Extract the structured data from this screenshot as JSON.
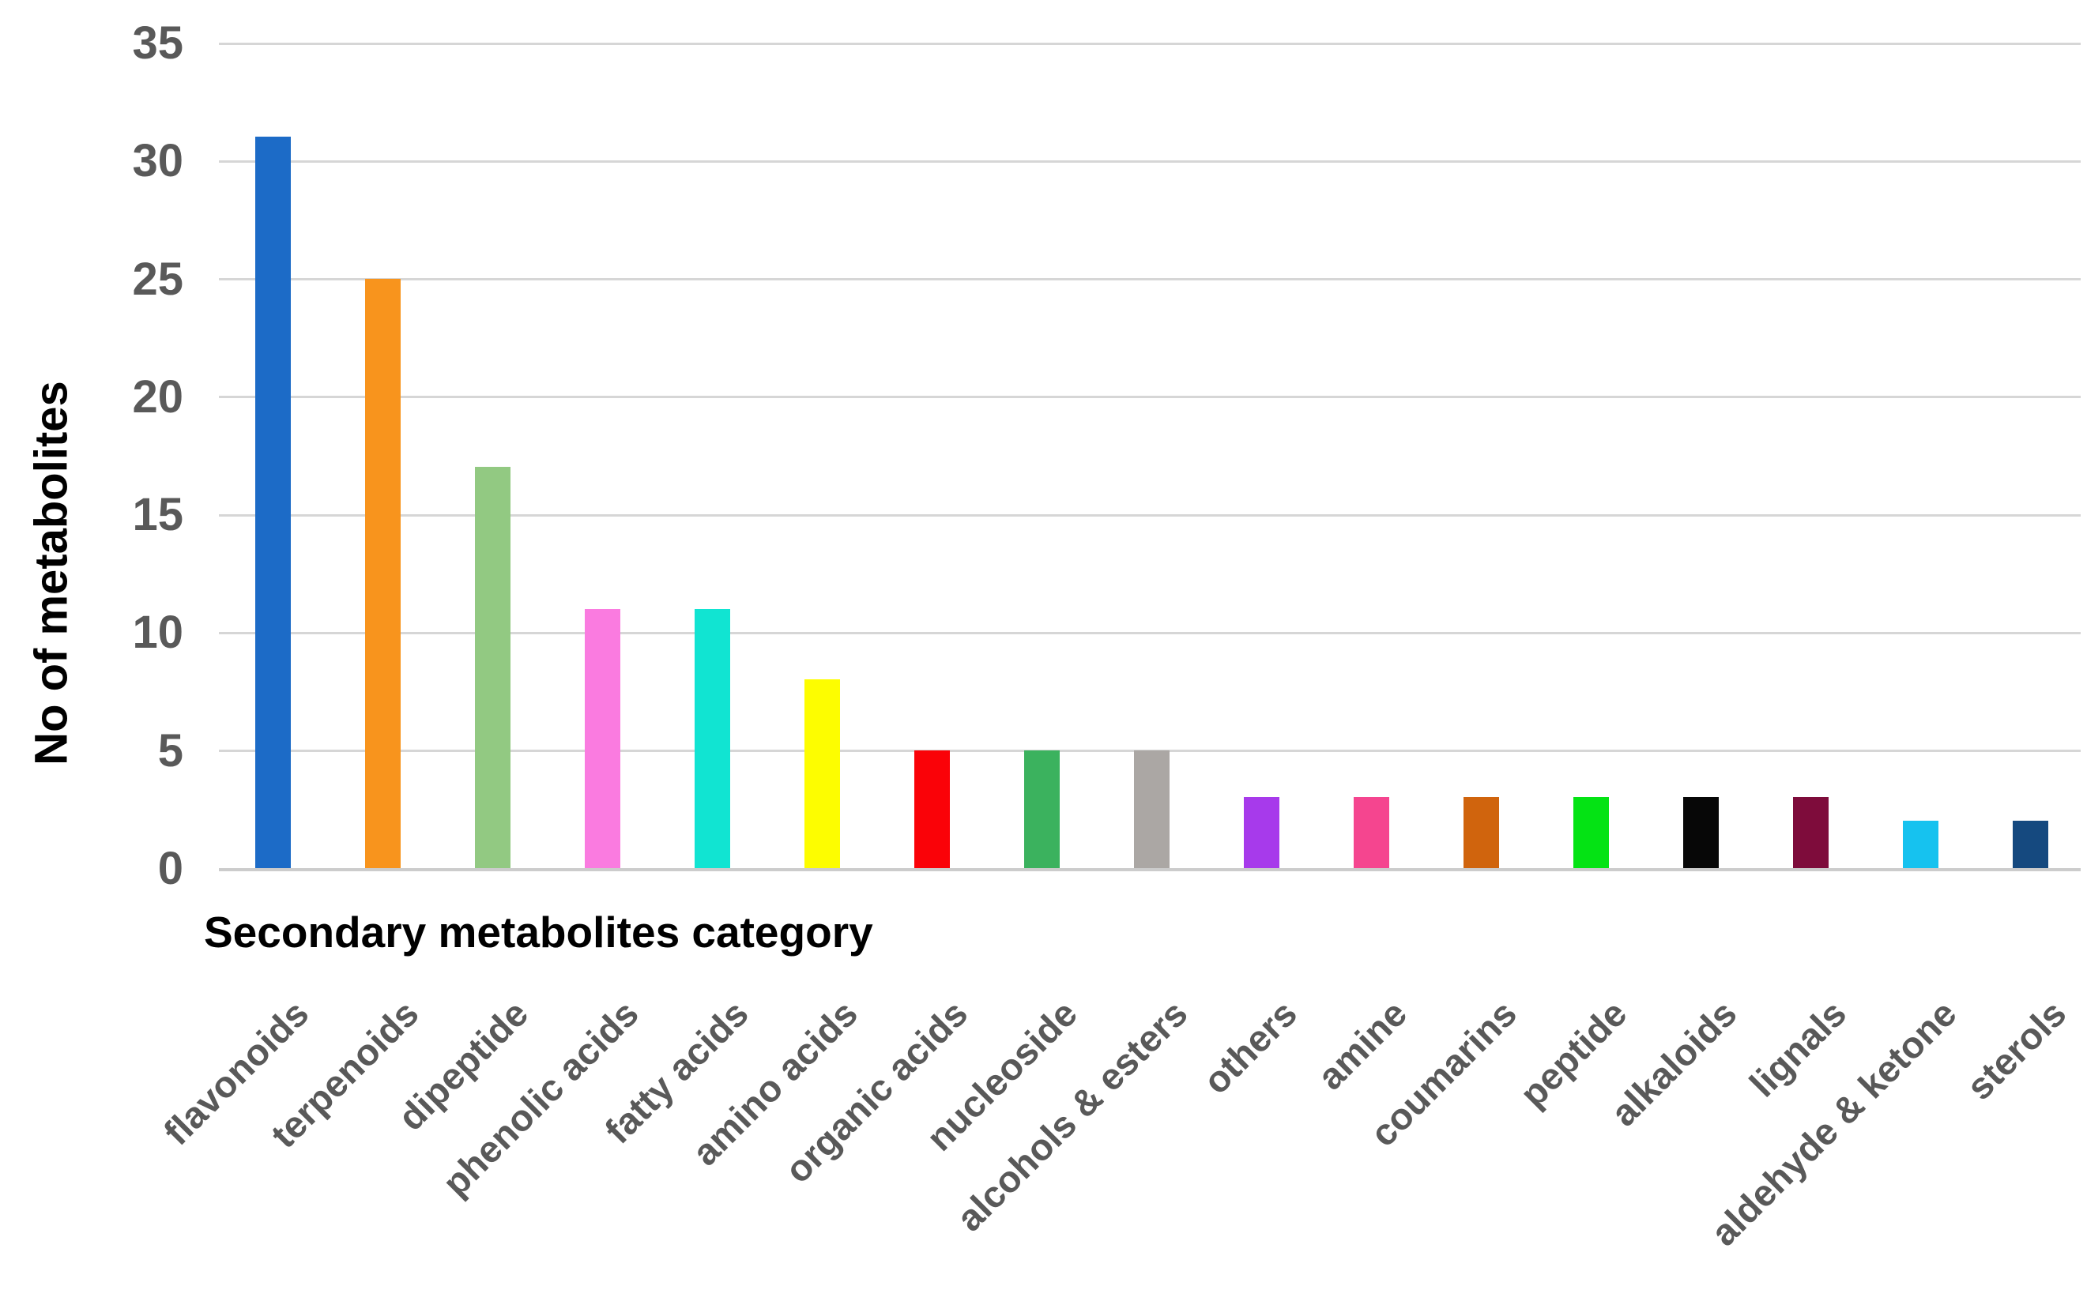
{
  "chart_data": {
    "type": "bar",
    "title": "",
    "xlabel": "Secondary metabolites category",
    "ylabel": "No of metabolites",
    "ylim": [
      0,
      35
    ],
    "yticks": [
      0,
      5,
      10,
      15,
      20,
      25,
      30,
      35
    ],
    "ytick_labels": [
      "0",
      "5",
      "10",
      "15",
      "20",
      "25",
      "30",
      "35"
    ],
    "grid": true,
    "legend": "none",
    "categories": [
      "flavonoids",
      "terpenoids",
      "dipeptide",
      "phenolic acids",
      "fatty acids",
      "amino acids",
      "organic acids",
      "nucleoside",
      "alcohols & esters",
      "others",
      "amine",
      "coumarins",
      "peptide",
      "alkaloids",
      "lignals",
      "aldehyde & ketone",
      "sterols"
    ],
    "values": [
      31,
      25,
      17,
      11,
      11,
      8,
      5,
      5,
      5,
      3,
      3,
      3,
      3,
      3,
      3,
      2,
      2
    ],
    "bar_colors": [
      "#1C6BC7",
      "#F8941D",
      "#92C982",
      "#FA7BE0",
      "#11E4D2",
      "#FDFD00",
      "#FA0208",
      "#3BB25E",
      "#ABA7A4",
      "#A73AEB",
      "#F5458F",
      "#D0640D",
      "#04E314",
      "#070707",
      "#7E0C3B",
      "#16C2EF",
      "#15497F"
    ],
    "gridline_color": "#d6d6d6",
    "axis_line_color": "#cccccc",
    "tick_label_color": "#595959",
    "category_label_color": "#595959",
    "axis_title_color": "#000000"
  }
}
